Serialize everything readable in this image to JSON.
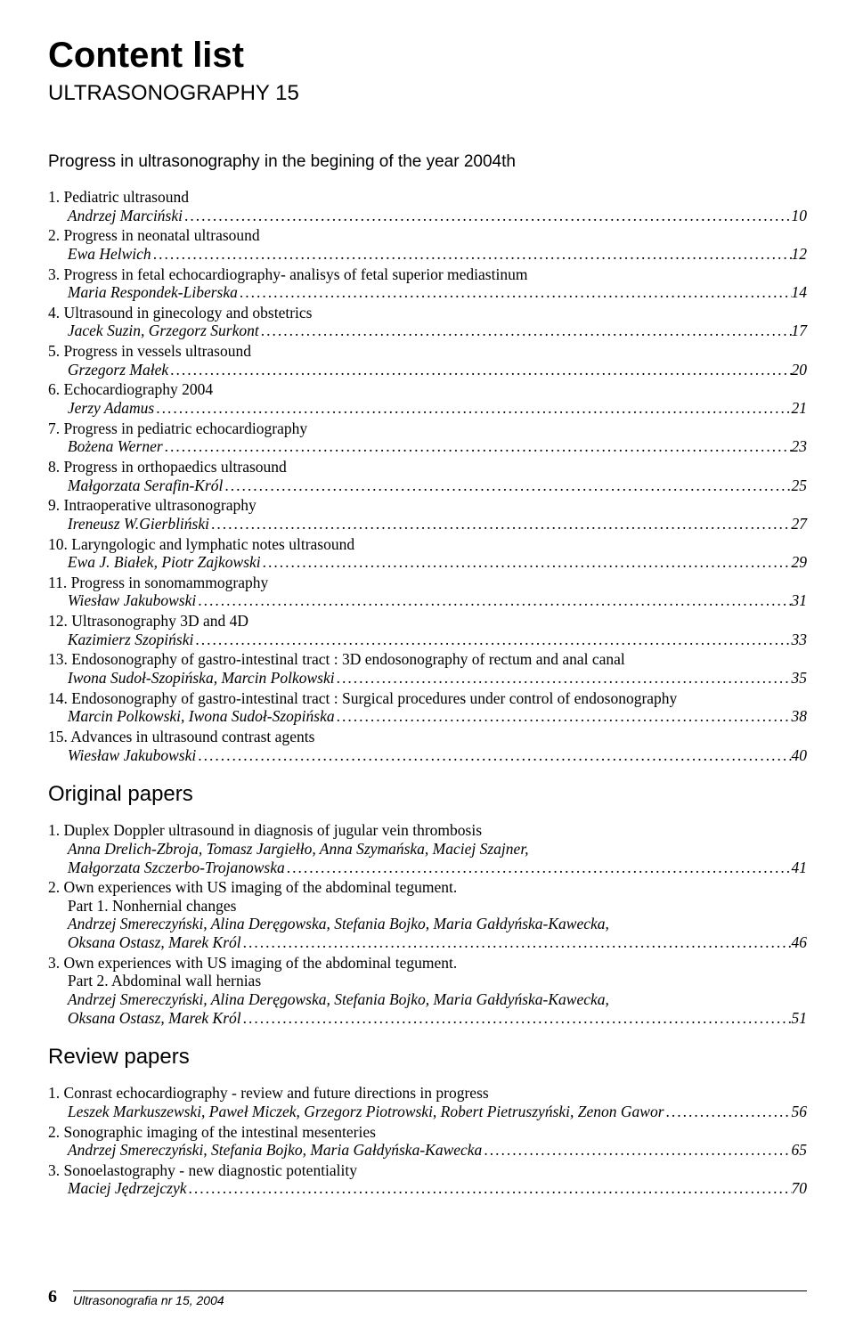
{
  "title": "Content list",
  "subtitle": "ULTRASONOGRAPHY 15",
  "intro_heading": "Progress in ultrasonography in the begining of the year 2004th",
  "section_original": "Original papers",
  "section_review": "Review papers",
  "footer_page": "6",
  "footer_journal": "Ultrasonografia nr 15, 2004",
  "main_entries": [
    {
      "num": "1.",
      "title": "Pediatric ultrasound",
      "author": "Andrzej Marciński",
      "page": "10"
    },
    {
      "num": "2.",
      "title": "Progress in neonatal ultrasound",
      "author": "Ewa Helwich",
      "page": "12"
    },
    {
      "num": "3.",
      "title": "Progress in fetal echocardiography- analisys of fetal superior mediastinum",
      "author": "Maria Respondek-Liberska",
      "page": "14"
    },
    {
      "num": "4.",
      "title": "Ultrasound in ginecology and obstetrics",
      "author": "Jacek Suzin, Grzegorz Surkont",
      "page": "17"
    },
    {
      "num": "5.",
      "title": "Progress in  vessels ultrasound",
      "author": "Grzegorz Małek",
      "page": "20"
    },
    {
      "num": "6.",
      "title": "Echocardiography 2004",
      "author": "Jerzy Adamus",
      "page": "21"
    },
    {
      "num": "7.",
      "title": "Progress in pediatric echocardiography",
      "author": "Bożena Werner",
      "page": "23"
    },
    {
      "num": "8.",
      "title": "Progress in orthopaedics ultrasound",
      "author": "Małgorzata Serafin-Król",
      "page": "25"
    },
    {
      "num": "9.",
      "title": "Intraoperative ultrasonography",
      "author": "Ireneusz W.Gierbliński",
      "page": "27"
    },
    {
      "num": "10.",
      "title": "Laryngologic and lymphatic notes ultrasound",
      "author": "Ewa J. Białek, Piotr Zajkowski",
      "page": "29"
    },
    {
      "num": "11.",
      "title": "Progress in sonomammography",
      "author": "Wiesław Jakubowski",
      "page": "31"
    },
    {
      "num": "12.",
      "title": "Ultrasonography  3D and 4D",
      "author": "Kazimierz Szopiński",
      "page": "33"
    },
    {
      "num": "13.",
      "title": "Endosonography of gastro-intestinal tract : 3D endosonography of rectum and anal canal",
      "author": "Iwona Sudoł-Szopińska, Marcin Polkowski",
      "page": "35"
    },
    {
      "num": "14.",
      "title": "Endosonography of gastro-intestinal tract : Surgical procedures under control of endosonography",
      "author": "Marcin Polkowski, Iwona Sudoł-Szopińska",
      "page": "38"
    },
    {
      "num": "15.",
      "title": "Advances in ultrasound contrast agents",
      "author": "Wiesław Jakubowski",
      "page": "40"
    }
  ],
  "original_entries": [
    {
      "num": "1.",
      "title_lines": [
        "Duplex Doppler ultrasound in diagnosis of jugular vein thrombosis"
      ],
      "extra_lines": [
        "Anna Drelich-Zbroja, Tomasz Jargiełło, Anna Szymańska, Maciej Szajner,"
      ],
      "author": "Małgorzata Szczerbo-Trojanowska",
      "page": "41"
    },
    {
      "num": "2.",
      "title_lines": [
        "Own experiences with US imaging of the abdominal tegument.",
        "Part 1. Nonhernial changes"
      ],
      "extra_lines": [
        "Andrzej Smereczyński, Alina Deręgowska, Stefania Bojko, Maria Gałdyńska-Kawecka,"
      ],
      "author": "Oksana Ostasz, Marek Król",
      "page": "46"
    },
    {
      "num": "3.",
      "title_lines": [
        "Own experiences with US imaging of the abdominal tegument.",
        "Part 2. Abdominal wall  hernias"
      ],
      "extra_lines": [
        "Andrzej Smereczyński, Alina Deręgowska, Stefania Bojko, Maria Gałdyńska-Kawecka,"
      ],
      "author": "Oksana Ostasz, Marek Król",
      "page": "51"
    }
  ],
  "review_entries": [
    {
      "num": "1.",
      "title_lines": [
        "Conrast echocardiography - review and future directions in progress"
      ],
      "extra_lines": [],
      "author": "Leszek Markuszewski, Paweł Miczek, Grzegorz Piotrowski, Robert Pietruszyński, Zenon Gawor",
      "page": "56"
    },
    {
      "num": "2.",
      "title_lines": [
        "Sonographic imaging of the intestinal mesenteries"
      ],
      "extra_lines": [],
      "author": "Andrzej Smereczyński, Stefania Bojko, Maria Gałdyńska-Kawecka",
      "page": "65"
    },
    {
      "num": "3.",
      "title_lines": [
        "Sonoelastography - new diagnostic potentiality"
      ],
      "extra_lines": [],
      "author": "Maciej Jędrzejczyk",
      "page": "70"
    }
  ]
}
